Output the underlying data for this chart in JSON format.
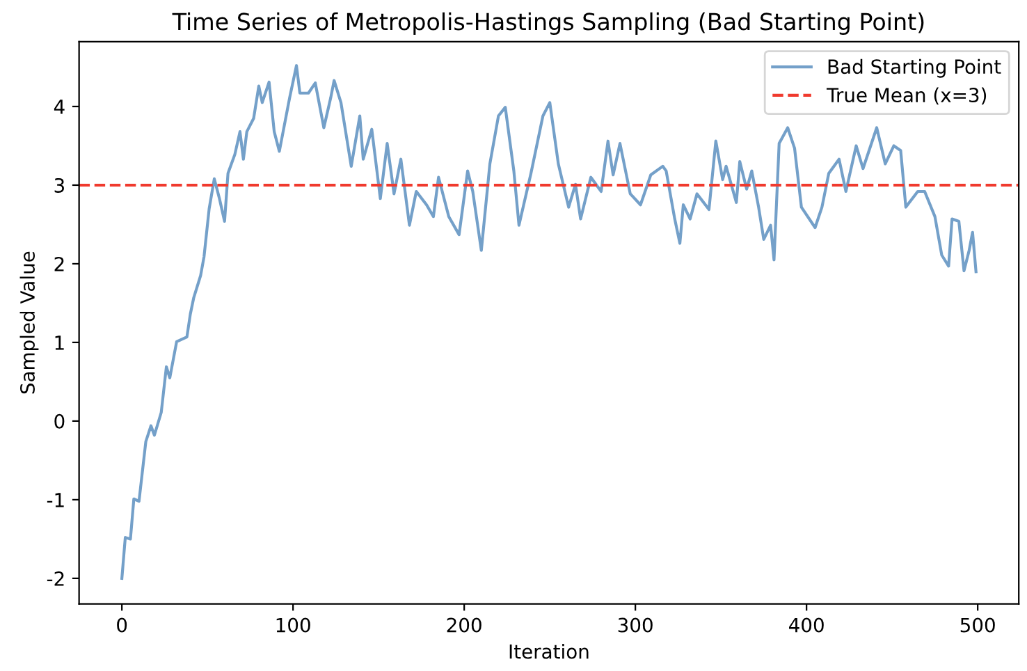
{
  "chart_data": {
    "type": "line",
    "title": "Time Series of Metropolis-Hastings Sampling (Bad Starting Point)",
    "xlabel": "Iteration",
    "ylabel": "Sampled Value",
    "xlim": [
      -25,
      524
    ],
    "xticks": [
      0,
      100,
      200,
      300,
      400,
      500
    ],
    "ylim": [
      -2.325,
      4.825
    ],
    "yticks": [
      -2,
      -1,
      0,
      1,
      2,
      3,
      4
    ],
    "grid": false,
    "legend": "top right",
    "marker": "none",
    "line_style": "solid",
    "series": [
      {
        "name": "Bad Starting Point",
        "color": "#74a0c9",
        "x": [
          0,
          2,
          5,
          7,
          10,
          14,
          17,
          19,
          23,
          26,
          28,
          32,
          38,
          40,
          42,
          46,
          48,
          51,
          54,
          57,
          60,
          62,
          66,
          69,
          71,
          73,
          77,
          80,
          82,
          86,
          89,
          92,
          98,
          102,
          104,
          109,
          113,
          118,
          122,
          124,
          128,
          134,
          139,
          141,
          146,
          151,
          155,
          159,
          163,
          168,
          172,
          178,
          182,
          185,
          191,
          197,
          202,
          205,
          210,
          215,
          220,
          224,
          229,
          232,
          239,
          246,
          250,
          255,
          261,
          265,
          268,
          274,
          280,
          284,
          287,
          291,
          297,
          303,
          309,
          316,
          318,
          323,
          326,
          328,
          332,
          336,
          343,
          347,
          351,
          353,
          359,
          361,
          365,
          368,
          372,
          375,
          379,
          381,
          384,
          389,
          393,
          397,
          405,
          409,
          413,
          419,
          423,
          429,
          433,
          441,
          446,
          451,
          455,
          458,
          465,
          469,
          475,
          479,
          483,
          485,
          489,
          492,
          495,
          497,
          499
        ],
        "values": [
          -2.0,
          -1.48,
          -1.5,
          -0.99,
          -1.02,
          -0.26,
          -0.06,
          -0.18,
          0.11,
          0.69,
          0.55,
          1.01,
          1.07,
          1.36,
          1.57,
          1.85,
          2.09,
          2.7,
          3.08,
          2.83,
          2.54,
          3.15,
          3.39,
          3.68,
          3.33,
          3.68,
          3.85,
          4.26,
          4.05,
          4.31,
          3.68,
          3.43,
          4.11,
          4.52,
          4.17,
          4.17,
          4.3,
          3.73,
          4.11,
          4.33,
          4.05,
          3.24,
          3.88,
          3.33,
          3.71,
          2.83,
          3.53,
          2.89,
          3.33,
          2.49,
          2.92,
          2.75,
          2.6,
          3.1,
          2.6,
          2.37,
          3.18,
          2.92,
          2.17,
          3.27,
          3.88,
          3.99,
          3.18,
          2.49,
          3.15,
          3.88,
          4.05,
          3.27,
          2.72,
          3.01,
          2.57,
          3.1,
          2.92,
          3.56,
          3.13,
          3.53,
          2.89,
          2.75,
          3.13,
          3.24,
          3.18,
          2.57,
          2.26,
          2.75,
          2.57,
          2.89,
          2.69,
          3.56,
          3.07,
          3.24,
          2.78,
          3.3,
          2.95,
          3.18,
          2.72,
          2.31,
          2.49,
          2.05,
          3.53,
          3.73,
          3.47,
          2.72,
          2.46,
          2.72,
          3.15,
          3.33,
          2.92,
          3.5,
          3.21,
          3.73,
          3.27,
          3.5,
          3.44,
          2.72,
          2.92,
          2.92,
          2.6,
          2.11,
          1.97,
          2.57,
          2.54,
          1.91,
          2.17,
          2.4,
          1.9
        ]
      }
    ],
    "ref_lines": [
      {
        "axis": "y",
        "value": 3,
        "label": "True Mean (x=3)",
        "color": "#f03a2e",
        "line_style": "dashed"
      }
    ]
  }
}
